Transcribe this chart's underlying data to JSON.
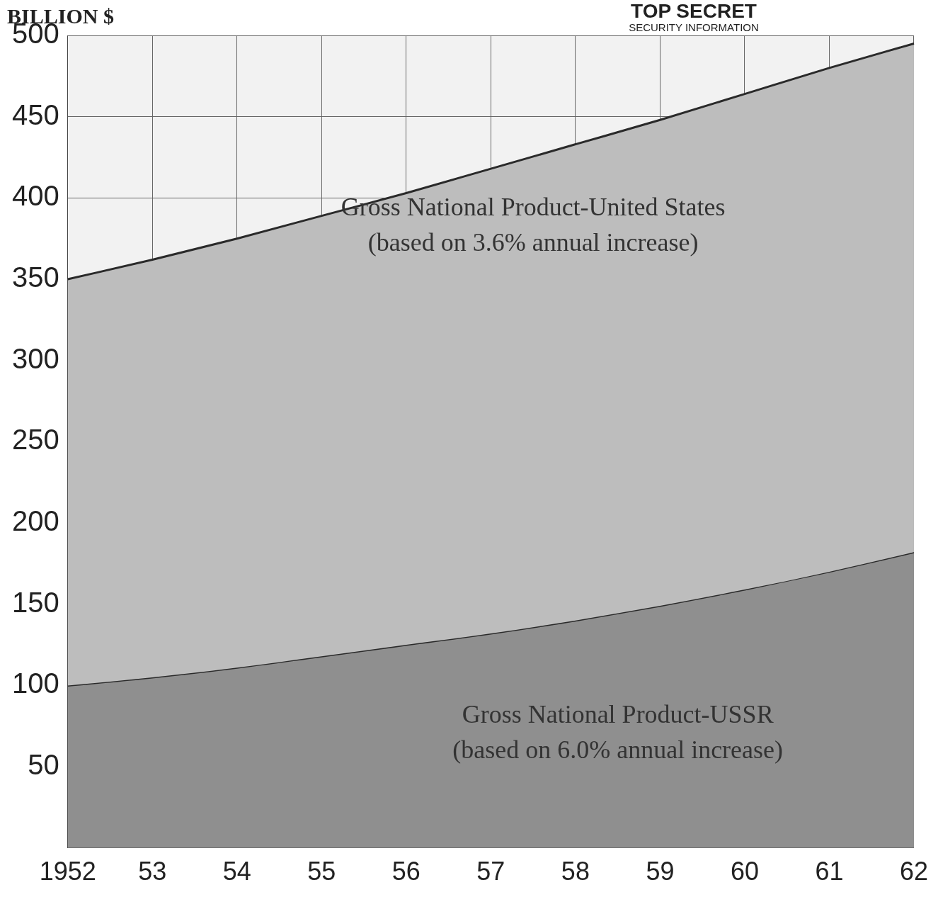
{
  "chart_data": {
    "type": "area",
    "ylabel": "BILLION $",
    "categories": [
      "1952",
      "53",
      "54",
      "55",
      "56",
      "57",
      "58",
      "59",
      "60",
      "61",
      "62"
    ],
    "series": [
      {
        "name": "Gross National Product-United States",
        "color": "#bdbdbd",
        "values": [
          350,
          362,
          375,
          389,
          403,
          418,
          433,
          448,
          464,
          480,
          495
        ]
      },
      {
        "name": "Gross National Product-USSR",
        "color": "#8f8f8f",
        "values": [
          100,
          105,
          111,
          118,
          125,
          132,
          140,
          149,
          159,
          170,
          182
        ]
      }
    ],
    "ylim": [
      0,
      500
    ],
    "yticks": [
      50,
      100,
      150,
      200,
      250,
      300,
      350,
      400,
      450,
      500
    ],
    "grid": true,
    "legend": false,
    "annotations": [
      "TOP SECRET",
      "SECURITY INFORMATION",
      "(based on 3.6% annual increase)",
      "(based on 6.0% annual increase)"
    ]
  }
}
